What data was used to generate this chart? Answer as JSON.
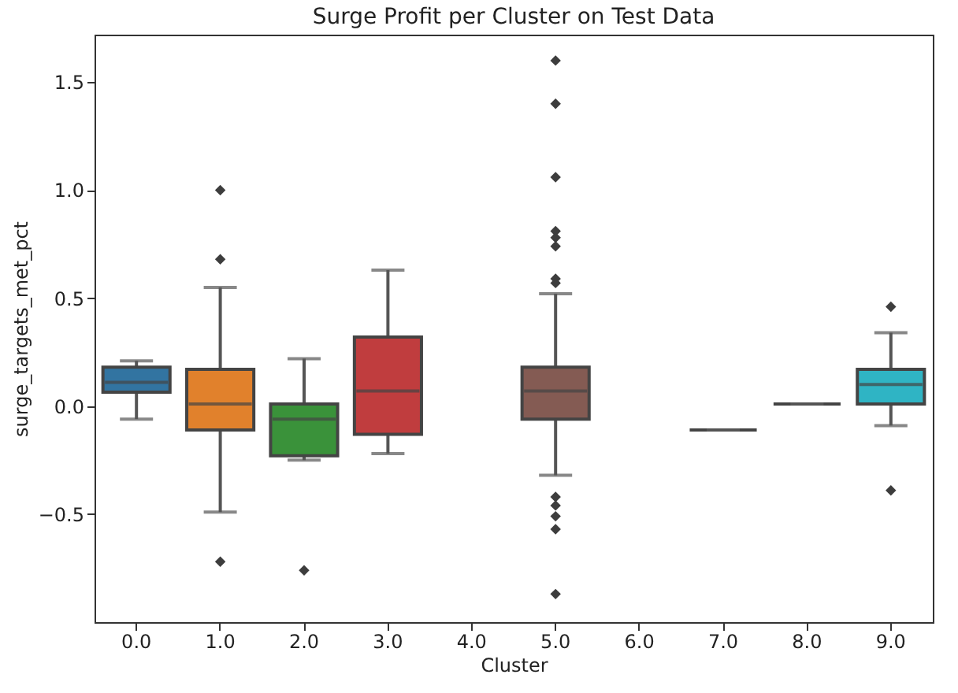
{
  "chart_data": {
    "type": "box",
    "title": "Surge Profit per Cluster on Test Data",
    "xlabel": "Cluster",
    "ylabel": "surge_targets_met_pct",
    "categories": [
      "0.0",
      "1.0",
      "2.0",
      "3.0",
      "4.0",
      "5.0",
      "6.0",
      "7.0",
      "8.0",
      "9.0"
    ],
    "colors": [
      "#3274a1",
      "#e1812c",
      "#3a923a",
      "#c03d3e",
      null,
      "#845b53",
      null,
      null,
      null,
      "#2fb4c4"
    ],
    "boxes": [
      {
        "low": -0.06,
        "q1": 0.065,
        "median": 0.11,
        "q3": 0.18,
        "high": 0.21
      },
      {
        "low": -0.49,
        "q1": -0.11,
        "median": 0.01,
        "q3": 0.17,
        "high": 0.55,
        "outliers": [
          1.0,
          0.68,
          -0.72
        ]
      },
      {
        "low": -0.25,
        "q1": -0.23,
        "median": -0.06,
        "q3": 0.01,
        "high": 0.22,
        "outliers": [
          -0.76
        ]
      },
      {
        "low": -0.22,
        "q1": -0.13,
        "median": 0.07,
        "q3": 0.32,
        "high": 0.63
      },
      null,
      {
        "low": -0.32,
        "q1": -0.06,
        "median": 0.07,
        "q3": 0.18,
        "high": 0.52,
        "outliers": [
          1.6,
          1.4,
          1.06,
          0.81,
          0.78,
          0.74,
          0.59,
          0.57,
          -0.42,
          -0.46,
          -0.51,
          -0.57,
          -0.87
        ]
      },
      null,
      {
        "low": -0.11,
        "q1": -0.11,
        "median": -0.11,
        "q3": -0.11,
        "high": -0.11
      },
      {
        "low": 0.01,
        "q1": 0.01,
        "median": 0.01,
        "q3": 0.01,
        "high": 0.01
      },
      {
        "low": -0.09,
        "q1": 0.01,
        "median": 0.1,
        "q3": 0.17,
        "high": 0.34,
        "outliers": [
          0.46,
          -0.39
        ]
      }
    ],
    "ylim": [
      -1.0,
      1.72
    ],
    "yticks": [
      {
        "value": -0.5,
        "label": "−0.5"
      },
      {
        "value": 0,
        "label": "0.0"
      },
      {
        "value": 0.5,
        "label": "0.5"
      },
      {
        "value": 1.0,
        "label": "1.0"
      },
      {
        "value": 1.5,
        "label": "1.5"
      }
    ],
    "grid": false
  }
}
